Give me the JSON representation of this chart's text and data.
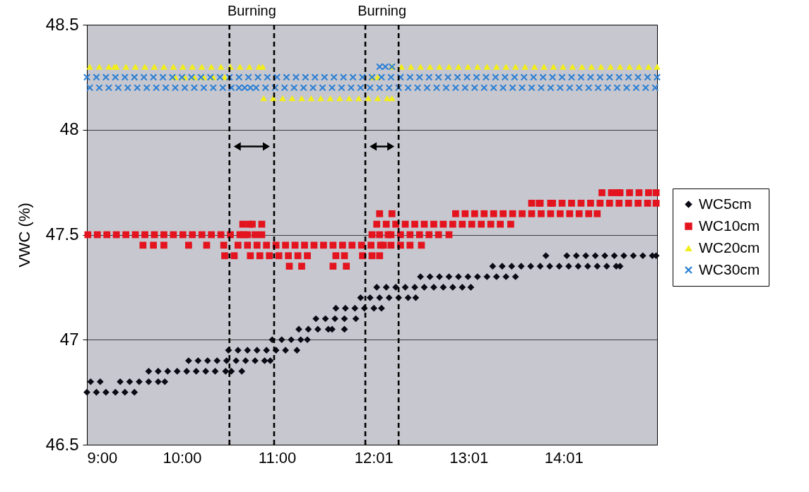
{
  "chart_data": {
    "type": "scatter",
    "ylabel": "VWC (%)",
    "xlim": [
      9,
      15
    ],
    "ylim": [
      46.5,
      48.5
    ],
    "xticks": [
      {
        "value": 9,
        "label": "9:00"
      },
      {
        "value": 10,
        "label": "10:00"
      },
      {
        "value": 11,
        "label": "11:00"
      },
      {
        "value": 12.0167,
        "label": "12:01"
      },
      {
        "value": 13.0167,
        "label": "13:01"
      },
      {
        "value": 14.0167,
        "label": "14:01"
      }
    ],
    "yticks": [
      46.5,
      47,
      47.5,
      48,
      48.5
    ],
    "grid": "y",
    "legend": "right",
    "ref_lines": [
      {
        "axis": "x",
        "value": 10.5,
        "color": "#000000",
        "line_style": "dashed"
      },
      {
        "axis": "x",
        "value": 10.97,
        "color": "#000000",
        "line_style": "dashed"
      },
      {
        "axis": "x",
        "value": 11.93,
        "color": "#000000",
        "line_style": "dashed"
      },
      {
        "axis": "x",
        "value": 12.28,
        "color": "#000000",
        "line_style": "dashed"
      }
    ],
    "annotations": [
      "Burning",
      "Burning"
    ],
    "series": [
      {
        "name": "WC5cm",
        "color": "#0a0a14",
        "marker": "diamond",
        "x": [
          9.0,
          9.1,
          9.2,
          9.3,
          9.4,
          9.5,
          9.04,
          9.14,
          9.35,
          9.45,
          9.55,
          9.65,
          9.75,
          9.82,
          9.65,
          9.75,
          9.85,
          9.95,
          10.05,
          10.15,
          10.25,
          10.35,
          10.46,
          10.52,
          10.63,
          10.07,
          10.17,
          10.27,
          10.37,
          10.47,
          10.57,
          10.67,
          10.77,
          10.87,
          10.93,
          10.49,
          10.59,
          10.69,
          10.79,
          10.89,
          10.99,
          11.09,
          11.21,
          10.95,
          11.05,
          11.15,
          11.25,
          11.32,
          11.23,
          11.33,
          11.43,
          11.54,
          11.58,
          11.71,
          11.41,
          11.51,
          11.61,
          11.71,
          11.83,
          11.62,
          11.72,
          11.82,
          11.92,
          12.02,
          12.1,
          11.88,
          11.98,
          12.08,
          12.18,
          12.28,
          12.38,
          12.46,
          12.05,
          12.15,
          12.25,
          12.35,
          12.45,
          12.55,
          12.65,
          12.75,
          12.85,
          12.95,
          13.04,
          12.51,
          12.61,
          12.71,
          12.81,
          12.91,
          13.01,
          13.11,
          13.21,
          13.31,
          13.41,
          13.51,
          13.27,
          13.37,
          13.47,
          13.57,
          13.67,
          13.77,
          13.87,
          13.97,
          14.07,
          14.17,
          14.27,
          14.37,
          14.47,
          14.57,
          14.61,
          13.83,
          14.05,
          14.15,
          14.25,
          14.35,
          14.45,
          14.55,
          14.65,
          14.75,
          14.85,
          14.95,
          14.99
        ],
        "values": [
          46.75,
          46.75,
          46.75,
          46.75,
          46.75,
          46.75,
          46.8,
          46.8,
          46.8,
          46.8,
          46.8,
          46.8,
          46.8,
          46.8,
          46.85,
          46.85,
          46.85,
          46.85,
          46.85,
          46.85,
          46.85,
          46.85,
          46.85,
          46.85,
          46.85,
          46.9,
          46.9,
          46.9,
          46.9,
          46.9,
          46.9,
          46.9,
          46.9,
          46.9,
          46.9,
          46.95,
          46.95,
          46.95,
          46.95,
          46.95,
          46.95,
          46.95,
          46.95,
          47,
          47,
          47,
          47,
          47,
          47.05,
          47.05,
          47.05,
          47.05,
          47.05,
          47.05,
          47.1,
          47.1,
          47.1,
          47.1,
          47.1,
          47.15,
          47.15,
          47.15,
          47.15,
          47.15,
          47.15,
          47.2,
          47.2,
          47.2,
          47.2,
          47.2,
          47.2,
          47.2,
          47.25,
          47.25,
          47.25,
          47.25,
          47.25,
          47.25,
          47.25,
          47.25,
          47.25,
          47.25,
          47.25,
          47.3,
          47.3,
          47.3,
          47.3,
          47.3,
          47.3,
          47.3,
          47.3,
          47.3,
          47.3,
          47.3,
          47.35,
          47.35,
          47.35,
          47.35,
          47.35,
          47.35,
          47.35,
          47.35,
          47.35,
          47.35,
          47.35,
          47.35,
          47.35,
          47.35,
          47.35,
          47.4,
          47.4,
          47.4,
          47.4,
          47.4,
          47.4,
          47.4,
          47.4,
          47.4,
          47.4,
          47.4,
          47.4
        ]
      },
      {
        "name": "WC10cm",
        "color": "#e4141e",
        "marker": "square",
        "x": [
          9.01,
          9.11,
          9.21,
          9.31,
          9.41,
          9.51,
          9.61,
          9.71,
          9.81,
          9.91,
          10.01,
          10.11,
          10.21,
          10.31,
          10.41,
          10.51,
          10.61,
          10.65,
          10.69,
          10.77,
          10.84,
          12.0,
          12.08,
          12.17,
          12.2,
          12.3,
          12.4,
          12.5,
          12.6,
          12.7,
          12.81,
          10.64,
          10.71,
          10.74,
          10.84,
          12.05,
          12.15,
          12.25,
          12.35,
          12.45,
          12.55,
          12.65,
          12.75,
          12.85,
          12.95,
          13.05,
          13.15,
          13.25,
          13.35,
          13.46,
          9.59,
          9.7,
          9.81,
          10.07,
          10.26,
          10.44,
          10.59,
          10.69,
          10.79,
          10.89,
          10.99,
          11.09,
          11.19,
          11.29,
          11.39,
          11.49,
          11.59,
          11.69,
          11.79,
          11.89,
          11.99,
          12.09,
          12.12,
          12.2,
          12.3,
          12.4,
          12.52,
          10.45,
          10.55,
          10.72,
          10.82,
          10.92,
          11.02,
          11.12,
          11.22,
          11.32,
          11.62,
          11.71,
          11.9,
          12.0,
          12.08,
          11.13,
          11.26,
          11.59,
          11.73,
          12.08,
          12.21,
          12.88,
          12.98,
          13.08,
          13.18,
          13.28,
          13.38,
          13.48,
          13.58,
          13.68,
          13.78,
          13.88,
          13.98,
          14.08,
          14.18,
          14.28,
          14.37,
          13.68,
          13.76,
          13.77,
          13.88,
          13.9,
          14.0,
          14.1,
          14.2,
          14.3,
          14.4,
          14.5,
          14.6,
          14.7,
          14.8,
          14.9,
          14.99,
          14.42,
          14.52,
          14.59,
          14.61,
          14.71,
          14.81,
          14.91,
          14.99
        ],
        "values": [
          47.5,
          47.5,
          47.5,
          47.5,
          47.5,
          47.5,
          47.5,
          47.5,
          47.5,
          47.5,
          47.5,
          47.5,
          47.5,
          47.5,
          47.5,
          47.5,
          47.5,
          47.5,
          47.5,
          47.5,
          47.5,
          47.5,
          47.5,
          47.5,
          47.5,
          47.5,
          47.5,
          47.5,
          47.5,
          47.5,
          47.5,
          47.55,
          47.55,
          47.55,
          47.55,
          47.55,
          47.55,
          47.55,
          47.55,
          47.55,
          47.55,
          47.55,
          47.55,
          47.55,
          47.55,
          47.55,
          47.55,
          47.55,
          47.55,
          47.55,
          47.45,
          47.45,
          47.45,
          47.45,
          47.45,
          47.45,
          47.45,
          47.45,
          47.45,
          47.45,
          47.45,
          47.45,
          47.45,
          47.45,
          47.45,
          47.45,
          47.45,
          47.45,
          47.45,
          47.45,
          47.45,
          47.45,
          47.45,
          47.45,
          47.45,
          47.45,
          47.45,
          47.4,
          47.4,
          47.4,
          47.4,
          47.4,
          47.4,
          47.4,
          47.4,
          47.4,
          47.4,
          47.4,
          47.4,
          47.4,
          47.4,
          47.35,
          47.35,
          47.35,
          47.35,
          47.6,
          47.6,
          47.6,
          47.6,
          47.6,
          47.6,
          47.6,
          47.6,
          47.6,
          47.6,
          47.6,
          47.6,
          47.6,
          47.6,
          47.6,
          47.6,
          47.6,
          47.6,
          47.65,
          47.65,
          47.65,
          47.65,
          47.65,
          47.65,
          47.65,
          47.65,
          47.65,
          47.65,
          47.65,
          47.65,
          47.65,
          47.65,
          47.65,
          47.65,
          47.7,
          47.7,
          47.7,
          47.7,
          47.7,
          47.7,
          47.7,
          47.7
        ]
      },
      {
        "name": "WC20cm",
        "color": "#f2ee1a",
        "marker": "triangle",
        "x": [
          9.03,
          9.13,
          9.23,
          9.29,
          9.31,
          9.41,
          9.51,
          9.61,
          9.71,
          9.81,
          9.91,
          10.01,
          10.11,
          10.21,
          10.31,
          10.41,
          10.51,
          10.61,
          10.71,
          10.81,
          10.85,
          12.21,
          12.31,
          12.41,
          12.51,
          12.61,
          12.71,
          12.81,
          12.91,
          13.01,
          13.11,
          13.21,
          13.31,
          13.41,
          13.51,
          13.61,
          13.71,
          13.81,
          13.91,
          14.01,
          14.11,
          14.21,
          14.31,
          14.41,
          14.51,
          14.61,
          14.71,
          14.81,
          14.91,
          15.0,
          9.93,
          10.03,
          10.13,
          10.23,
          10.33,
          10.45,
          12.0,
          12.06,
          10.86,
          10.96,
          11.06,
          11.16,
          11.26,
          11.36,
          11.46,
          11.56,
          11.66,
          11.76,
          11.86,
          11.96,
          12.06,
          12.16,
          12.21
        ],
        "values": [
          48.3,
          48.3,
          48.3,
          48.3,
          48.3,
          48.3,
          48.3,
          48.3,
          48.3,
          48.3,
          48.3,
          48.3,
          48.3,
          48.3,
          48.3,
          48.3,
          48.3,
          48.3,
          48.3,
          48.3,
          48.3,
          48.3,
          48.3,
          48.3,
          48.3,
          48.3,
          48.3,
          48.3,
          48.3,
          48.3,
          48.3,
          48.3,
          48.3,
          48.3,
          48.3,
          48.3,
          48.3,
          48.3,
          48.3,
          48.3,
          48.3,
          48.3,
          48.3,
          48.3,
          48.3,
          48.3,
          48.3,
          48.3,
          48.3,
          48.3,
          48.25,
          48.25,
          48.25,
          48.25,
          48.25,
          48.25,
          48.25,
          48.25,
          48.15,
          48.15,
          48.15,
          48.15,
          48.15,
          48.15,
          48.15,
          48.15,
          48.15,
          48.15,
          48.15,
          48.15,
          48.15,
          48.15,
          48.15
        ]
      },
      {
        "name": "WC30cm",
        "color": "#2a7fd4",
        "marker": "cross",
        "x": [
          9.0,
          9.1,
          9.2,
          9.3,
          9.4,
          9.5,
          9.6,
          9.7,
          9.8,
          9.9,
          10.0,
          10.1,
          10.2,
          10.3,
          10.4,
          10.5,
          10.6,
          10.7,
          10.8,
          10.9,
          11.0,
          11.1,
          11.2,
          11.3,
          11.4,
          11.5,
          11.6,
          11.7,
          11.8,
          11.9,
          12.0,
          12.1,
          12.2,
          12.3,
          12.4,
          12.5,
          12.6,
          12.7,
          12.8,
          12.9,
          13.0,
          13.1,
          13.2,
          13.3,
          13.4,
          13.5,
          13.6,
          13.7,
          13.8,
          13.9,
          14.0,
          14.1,
          14.2,
          14.3,
          14.4,
          14.5,
          14.6,
          14.7,
          14.8,
          14.9,
          15.0,
          9.03,
          9.13,
          9.23,
          9.33,
          9.43,
          9.53,
          9.63,
          9.73,
          9.83,
          9.93,
          10.03,
          10.13,
          10.23,
          10.33,
          10.43,
          10.52,
          10.6,
          10.66,
          10.72,
          10.78,
          10.88,
          10.98,
          11.08,
          11.18,
          11.28,
          11.38,
          11.48,
          11.58,
          11.68,
          11.78,
          11.88,
          11.98,
          12.08,
          12.18,
          12.28,
          12.38,
          12.48,
          12.58,
          12.68,
          12.78,
          12.88,
          12.98,
          13.08,
          13.18,
          13.28,
          13.38,
          13.48,
          13.58,
          13.68,
          13.78,
          13.88,
          13.98,
          14.08,
          14.18,
          14.28,
          14.38,
          14.48,
          14.58,
          14.68,
          14.78,
          14.88,
          14.98,
          12.08,
          12.14,
          12.21
        ],
        "values": [
          48.25,
          48.25,
          48.25,
          48.25,
          48.25,
          48.25,
          48.25,
          48.25,
          48.25,
          48.25,
          48.25,
          48.25,
          48.25,
          48.25,
          48.25,
          48.25,
          48.25,
          48.25,
          48.25,
          48.25,
          48.25,
          48.25,
          48.25,
          48.25,
          48.25,
          48.25,
          48.25,
          48.25,
          48.25,
          48.25,
          48.25,
          48.25,
          48.25,
          48.25,
          48.25,
          48.25,
          48.25,
          48.25,
          48.25,
          48.25,
          48.25,
          48.25,
          48.25,
          48.25,
          48.25,
          48.25,
          48.25,
          48.25,
          48.25,
          48.25,
          48.25,
          48.25,
          48.25,
          48.25,
          48.25,
          48.25,
          48.25,
          48.25,
          48.25,
          48.25,
          48.25,
          48.2,
          48.2,
          48.2,
          48.2,
          48.2,
          48.2,
          48.2,
          48.2,
          48.2,
          48.2,
          48.2,
          48.2,
          48.2,
          48.2,
          48.2,
          48.2,
          48.2,
          48.2,
          48.2,
          48.2,
          48.2,
          48.2,
          48.2,
          48.2,
          48.2,
          48.2,
          48.2,
          48.2,
          48.2,
          48.2,
          48.2,
          48.2,
          48.2,
          48.2,
          48.2,
          48.2,
          48.2,
          48.2,
          48.2,
          48.2,
          48.2,
          48.2,
          48.2,
          48.2,
          48.2,
          48.2,
          48.2,
          48.2,
          48.2,
          48.2,
          48.2,
          48.2,
          48.2,
          48.2,
          48.2,
          48.2,
          48.2,
          48.2,
          48.2,
          48.2,
          48.2,
          48.2,
          48.3,
          48.3,
          48.3
        ]
      }
    ]
  }
}
